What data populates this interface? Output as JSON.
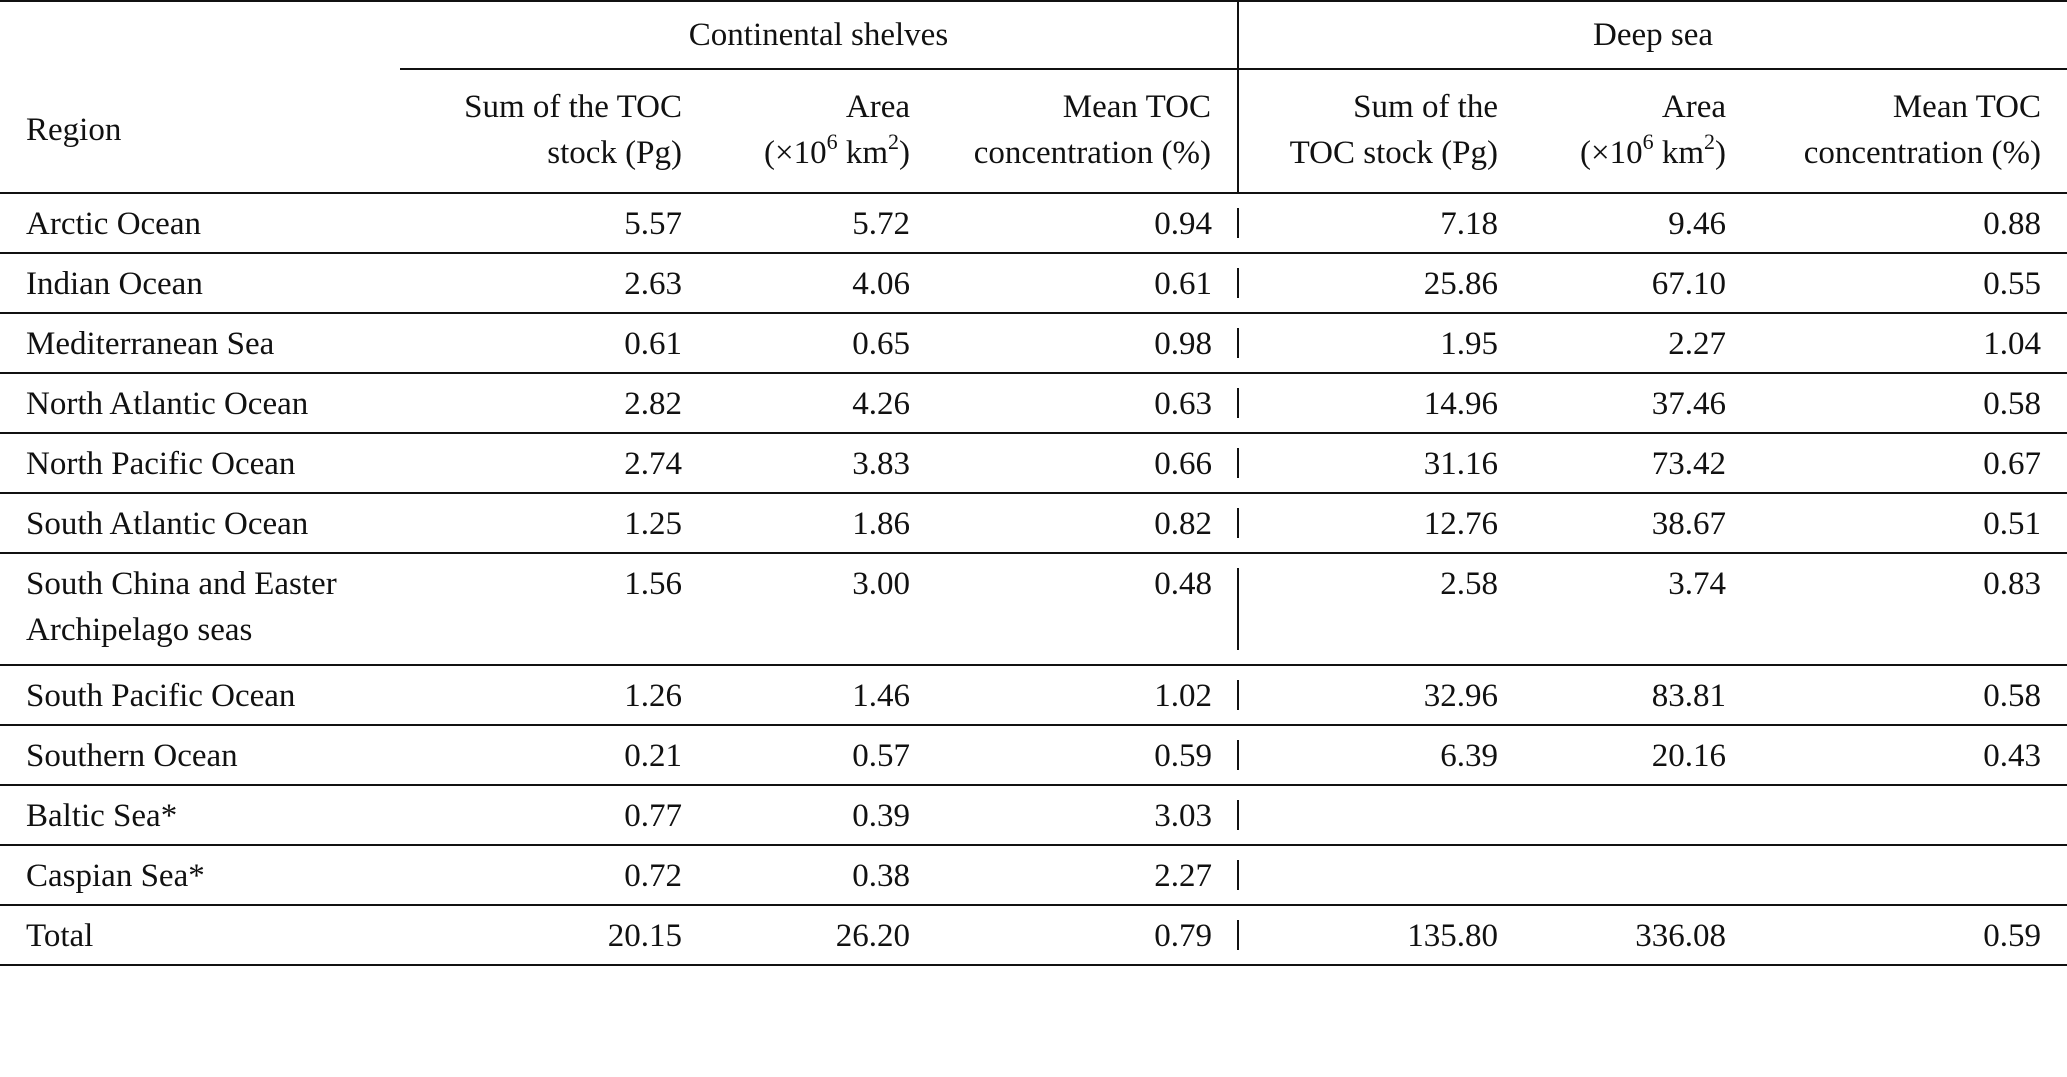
{
  "table": {
    "group_headers": {
      "shelves": "Continental shelves",
      "deep": "Deep sea"
    },
    "col_headers": {
      "region": "Region",
      "shelf_toc_l1": "Sum of the TOC",
      "shelf_toc_l2": "stock (Pg)",
      "shelf_area_l1": "Area",
      "shelf_area_l2_pre": "(×10",
      "shelf_area_l2_sup": "6",
      "shelf_area_l2_mid": " km",
      "shelf_area_l2_sup2": "2",
      "shelf_area_l2_post": ")",
      "shelf_mean_l1": "Mean TOC",
      "shelf_mean_l2": "concentration (%)",
      "deep_toc_l1": "Sum of the",
      "deep_toc_l2": "TOC stock (Pg)",
      "deep_area_l1": "Area",
      "deep_area_l2_pre": "(×10",
      "deep_area_l2_sup": "6",
      "deep_area_l2_mid": " km",
      "deep_area_l2_sup2": "2",
      "deep_area_l2_post": ")",
      "deep_mean_l1": "Mean TOC",
      "deep_mean_l2": "concentration (%)"
    },
    "rows": [
      {
        "region": "Arctic Ocean",
        "shelf_toc": "5.57",
        "shelf_area": "5.72",
        "shelf_mean": "0.94",
        "deep_toc": "7.18",
        "deep_area": "9.46",
        "deep_mean": "0.88"
      },
      {
        "region": "Indian Ocean",
        "shelf_toc": "2.63",
        "shelf_area": "4.06",
        "shelf_mean": "0.61",
        "deep_toc": "25.86",
        "deep_area": "67.10",
        "deep_mean": "0.55"
      },
      {
        "region": "Mediterranean Sea",
        "shelf_toc": "0.61",
        "shelf_area": "0.65",
        "shelf_mean": "0.98",
        "deep_toc": "1.95",
        "deep_area": "2.27",
        "deep_mean": "1.04"
      },
      {
        "region": "North Atlantic Ocean",
        "shelf_toc": "2.82",
        "shelf_area": "4.26",
        "shelf_mean": "0.63",
        "deep_toc": "14.96",
        "deep_area": "37.46",
        "deep_mean": "0.58"
      },
      {
        "region": "North Pacific Ocean",
        "shelf_toc": "2.74",
        "shelf_area": "3.83",
        "shelf_mean": "0.66",
        "deep_toc": "31.16",
        "deep_area": "73.42",
        "deep_mean": "0.67"
      },
      {
        "region": "South Atlantic Ocean",
        "shelf_toc": "1.25",
        "shelf_area": "1.86",
        "shelf_mean": "0.82",
        "deep_toc": "12.76",
        "deep_area": "38.67",
        "deep_mean": "0.51"
      },
      {
        "region": "South China and Easter Archipelago seas",
        "region_l1": "South China and Easter",
        "region_l2": "Archipelago seas",
        "shelf_toc": "1.56",
        "shelf_area": "3.00",
        "shelf_mean": "0.48",
        "deep_toc": "2.58",
        "deep_area": "3.74",
        "deep_mean": "0.83"
      },
      {
        "region": "South Pacific Ocean",
        "shelf_toc": "1.26",
        "shelf_area": "1.46",
        "shelf_mean": "1.02",
        "deep_toc": "32.96",
        "deep_area": "83.81",
        "deep_mean": "0.58"
      },
      {
        "region": "Southern Ocean",
        "shelf_toc": "0.21",
        "shelf_area": "0.57",
        "shelf_mean": "0.59",
        "deep_toc": "6.39",
        "deep_area": "20.16",
        "deep_mean": "0.43"
      },
      {
        "region": "Baltic Sea*",
        "shelf_toc": "0.77",
        "shelf_area": "0.39",
        "shelf_mean": "3.03",
        "deep_toc": "",
        "deep_area": "",
        "deep_mean": ""
      },
      {
        "region": "Caspian Sea*",
        "shelf_toc": "0.72",
        "shelf_area": "0.38",
        "shelf_mean": "2.27",
        "deep_toc": "",
        "deep_area": "",
        "deep_mean": ""
      },
      {
        "region": "Total",
        "shelf_toc": "20.15",
        "shelf_area": "26.20",
        "shelf_mean": "0.79",
        "deep_toc": "135.80",
        "deep_area": "336.08",
        "deep_mean": "0.59"
      }
    ]
  }
}
